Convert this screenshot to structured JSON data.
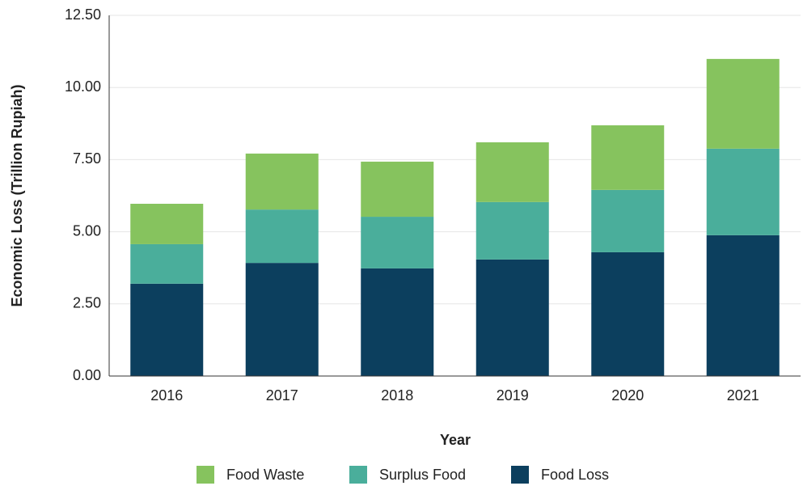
{
  "chart_data": {
    "type": "stacked_bar",
    "xlabel": "Year",
    "ylabel": "Economic Loss (Trillion Rupiah)",
    "categories": [
      "2016",
      "2017",
      "2018",
      "2019",
      "2020",
      "2021"
    ],
    "series": [
      {
        "name": "Food Waste",
        "color": "#86c35e",
        "values": [
          1.4,
          1.94,
          1.91,
          2.07,
          2.24,
          3.11
        ]
      },
      {
        "name": "Surplus Food",
        "color": "#4aae9b",
        "values": [
          1.37,
          1.85,
          1.79,
          1.99,
          2.16,
          3.0
        ]
      },
      {
        "name": "Food Loss",
        "color": "#0c3f5e",
        "values": [
          3.2,
          3.92,
          3.73,
          4.04,
          4.29,
          4.88
        ]
      }
    ],
    "ylim": [
      0,
      12.5
    ],
    "yticks": [
      {
        "value": 0,
        "label": "0.00"
      },
      {
        "value": 2.5,
        "label": "2.50"
      },
      {
        "value": 5,
        "label": "5.00"
      },
      {
        "value": 7.5,
        "label": "7.50"
      },
      {
        "value": 10,
        "label": "10.00"
      },
      {
        "value": 12.5,
        "label": "12.50"
      }
    ],
    "grid": true
  }
}
